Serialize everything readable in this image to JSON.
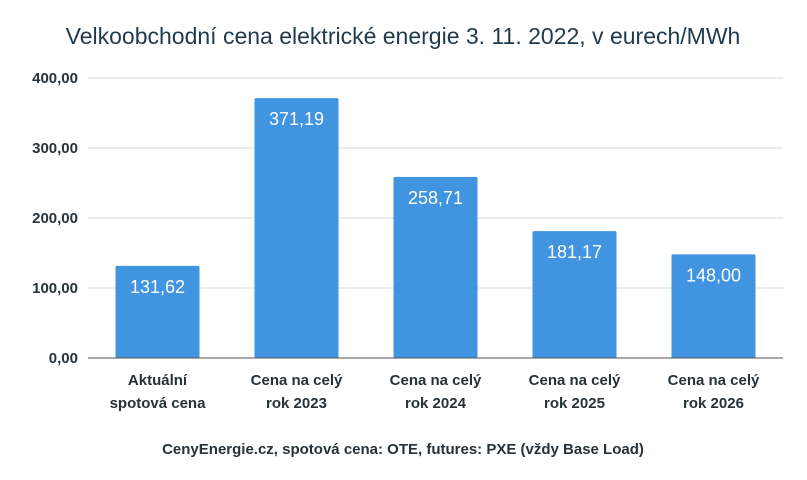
{
  "chart_data": {
    "type": "bar",
    "title": "Velkoobchodní cena elektrické energie 3. 11. 2022, v eurech/MWh",
    "categories": [
      [
        "Aktuální",
        "spotová cena"
      ],
      [
        "Cena na celý",
        "rok 2023"
      ],
      [
        "Cena na celý",
        "rok 2024"
      ],
      [
        "Cena na celý",
        "rok 2025"
      ],
      [
        "Cena na celý",
        "rok 2026"
      ]
    ],
    "values": [
      131.62,
      371.19,
      258.71,
      181.17,
      148.0
    ],
    "data_labels": [
      "131,62",
      "371,19",
      "258,71",
      "181,17",
      "148,00"
    ],
    "y_ticks": [
      0,
      100,
      200,
      300,
      400
    ],
    "y_tick_labels": [
      "0,00",
      "100,00",
      "200,00",
      "300,00",
      "400,00"
    ],
    "ylim": [
      0,
      400
    ],
    "grid": true,
    "bar_color": "#4194e0",
    "xlabel": "",
    "ylabel": "",
    "source": "CenyEnergie.cz, spotová cena: OTE, futures: PXE (vždy Base Load)"
  }
}
